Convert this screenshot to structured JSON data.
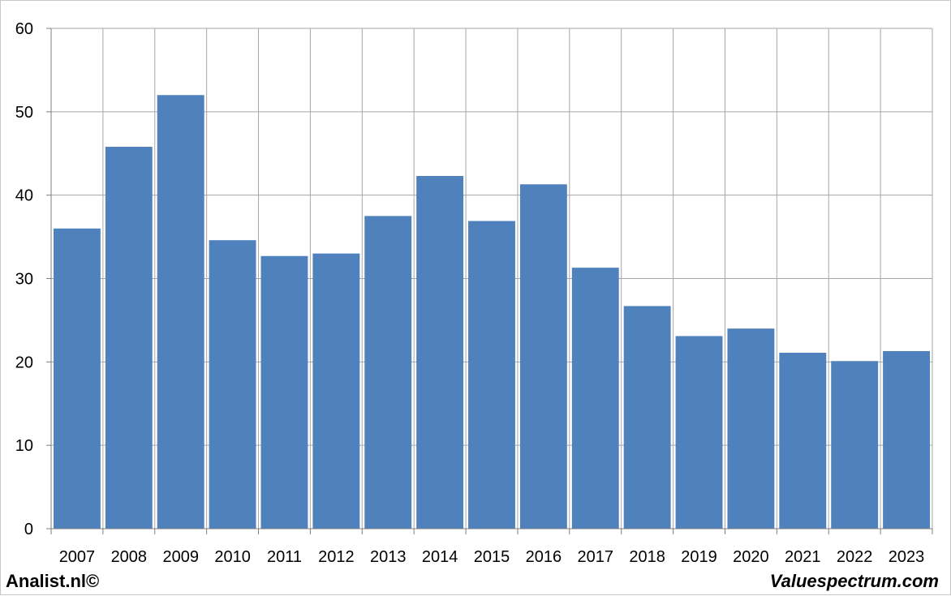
{
  "chart_data": {
    "type": "bar",
    "categories": [
      "2007",
      "2008",
      "2009",
      "2010",
      "2011",
      "2012",
      "2013",
      "2014",
      "2015",
      "2016",
      "2017",
      "2018",
      "2019",
      "2020",
      "2021",
      "2022",
      "2023"
    ],
    "values": [
      36.0,
      45.8,
      52.0,
      34.6,
      32.7,
      33.0,
      37.5,
      42.3,
      36.9,
      41.3,
      31.3,
      26.7,
      23.1,
      24.0,
      21.1,
      20.1,
      21.3
    ],
    "title": "",
    "xlabel": "",
    "ylabel": "",
    "ylim": [
      0,
      60
    ],
    "yticks": [
      "0",
      "10",
      "20",
      "30",
      "40",
      "50",
      "60"
    ],
    "grid": true,
    "bar_color": "#4f81bd"
  },
  "footer": {
    "left": "Analist.nl©",
    "right": "Valuespectrum.com"
  }
}
